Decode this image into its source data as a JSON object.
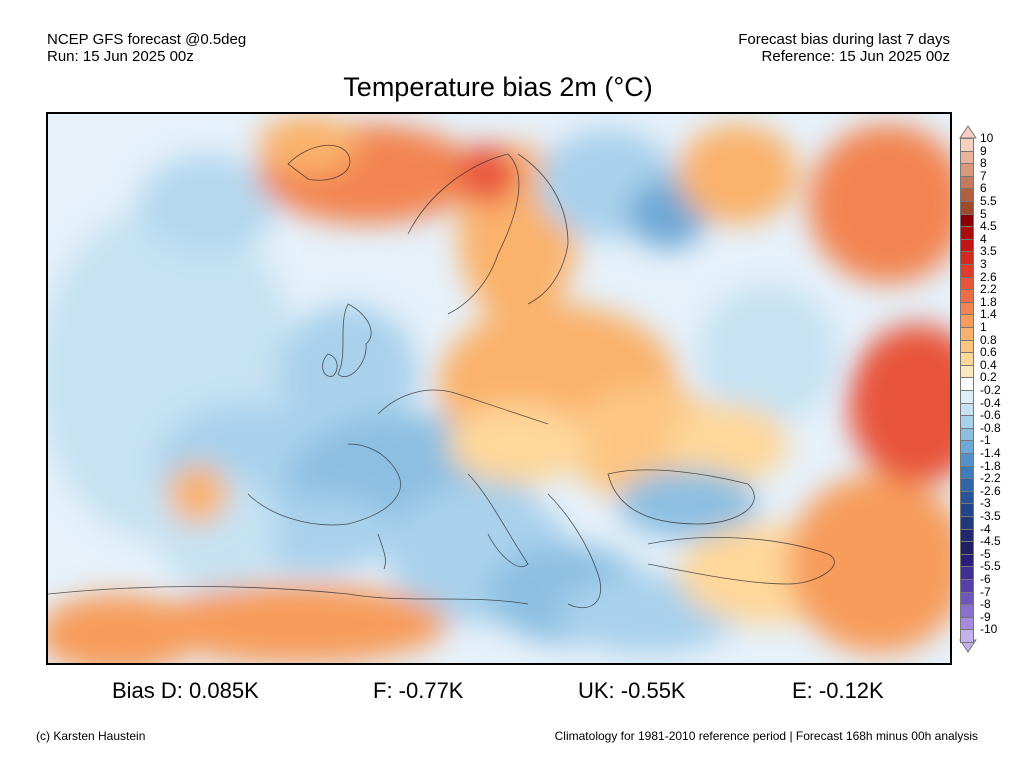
{
  "header": {
    "model": "NCEP GFS forecast @0.5deg",
    "run": "Run: 15 Jun 2025 00z",
    "bias_period": "Forecast bias during last 7 days",
    "reference": "Reference: 15 Jun 2025 00z"
  },
  "title": "Temperature bias 2m (°C)",
  "legend": {
    "labels": [
      "10",
      "9",
      "8",
      "7",
      "6",
      "5.5",
      "5",
      "4.5",
      "4",
      "3.5",
      "3",
      "2.6",
      "2.2",
      "1.8",
      "1.4",
      "1",
      "0.8",
      "0.6",
      "0.4",
      "0.2",
      "-0.2",
      "-0.4",
      "-0.6",
      "-0.8",
      "-1",
      "-1.4",
      "-1.8",
      "-2.2",
      "-2.6",
      "-3",
      "-3.5",
      "-4",
      "-4.5",
      "-5",
      "-5.5",
      "-6",
      "-7",
      "-8",
      "-9",
      "-10"
    ],
    "colors": [
      "#f5d0c0",
      "#ebb39c",
      "#d8987c",
      "#c47a5e",
      "#b0603f",
      "#9c4a2c",
      "#8a0000",
      "#ad0a0a",
      "#c41414",
      "#d42a22",
      "#e03c2c",
      "#e8553a",
      "#ef6c47",
      "#f38451",
      "#f79c5c",
      "#fab26c",
      "#fcc682",
      "#fed79a",
      "#ffe7be",
      "#ffffff",
      "#deeef9",
      "#c6e2f3",
      "#a9d1ec",
      "#8cbfe2",
      "#6fa9d6",
      "#5492c8",
      "#3f7bb8",
      "#3066a8",
      "#285398",
      "#234488",
      "#22367a",
      "#20296d",
      "#211f62",
      "#2a1f78",
      "#3f2f92",
      "#5640a8",
      "#6f56bd",
      "#8a6fce",
      "#a58add",
      "#c3b0ec"
    ]
  },
  "stats": {
    "d": "Bias D: 0.085K",
    "f": "F: -0.77K",
    "uk": "UK: -0.55K",
    "e": "E: -0.12K"
  },
  "footer": {
    "copyright": "(c) Karsten Haustein",
    "note": "Climatology for 1981-2010 reference period | Forecast 168h minus 00h analysis"
  }
}
